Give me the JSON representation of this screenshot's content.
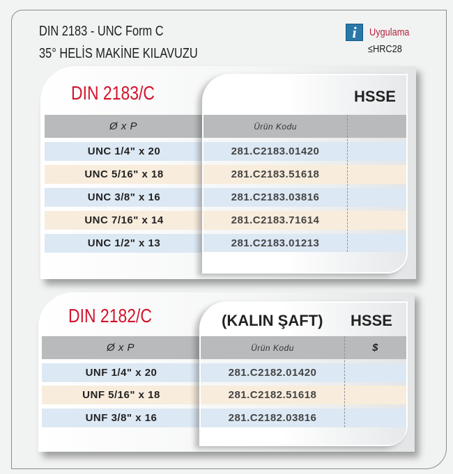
{
  "header": {
    "title_line1": "DIN 2183 - UNC Form C",
    "title_line2": "35° HELİS MAKİNE KILAVUZU",
    "info_icon": "info-icon",
    "info_glyph": "i",
    "application_label": "Uygulama",
    "hardness": "≤HRC28"
  },
  "table1": {
    "title": "DIN 2183/C",
    "material": "HSSE",
    "col_size": "Ø  x  P",
    "col_code": "Ürün Kodu",
    "col_price": "",
    "rows": [
      {
        "size": "UNC 1/4\" x 20",
        "code": "281.C2183.01420"
      },
      {
        "size": "UNC 5/16\" x 18",
        "code": "281.C2183.51618"
      },
      {
        "size": "UNC 3/8\" x 16",
        "code": "281.C2183.03816"
      },
      {
        "size": "UNC 7/16\" x 14",
        "code": "281.C2183.71614"
      },
      {
        "size": "UNC 1/2\" x 13",
        "code": "281.C2183.01213"
      }
    ]
  },
  "table2": {
    "title": "DIN 2182/C",
    "subtitle": "(KALIN ŞAFT)",
    "material": "HSSE",
    "col_size": "Ø  x  P",
    "col_code": "Ürün Kodu",
    "col_price": "$",
    "rows": [
      {
        "size": "UNF 1/4\" x 20",
        "code": "281.C2182.01420"
      },
      {
        "size": "UNF 5/16\" x 18",
        "code": "281.C2182.51618"
      },
      {
        "size": "UNF 3/8\" x 16",
        "code": "281.C2182.03816"
      }
    ]
  },
  "colors": {
    "accent_red": "#d3142c",
    "row_blue": "#dce8f3",
    "row_tan": "#f8ecdc",
    "header_gray": "#b9babb"
  }
}
